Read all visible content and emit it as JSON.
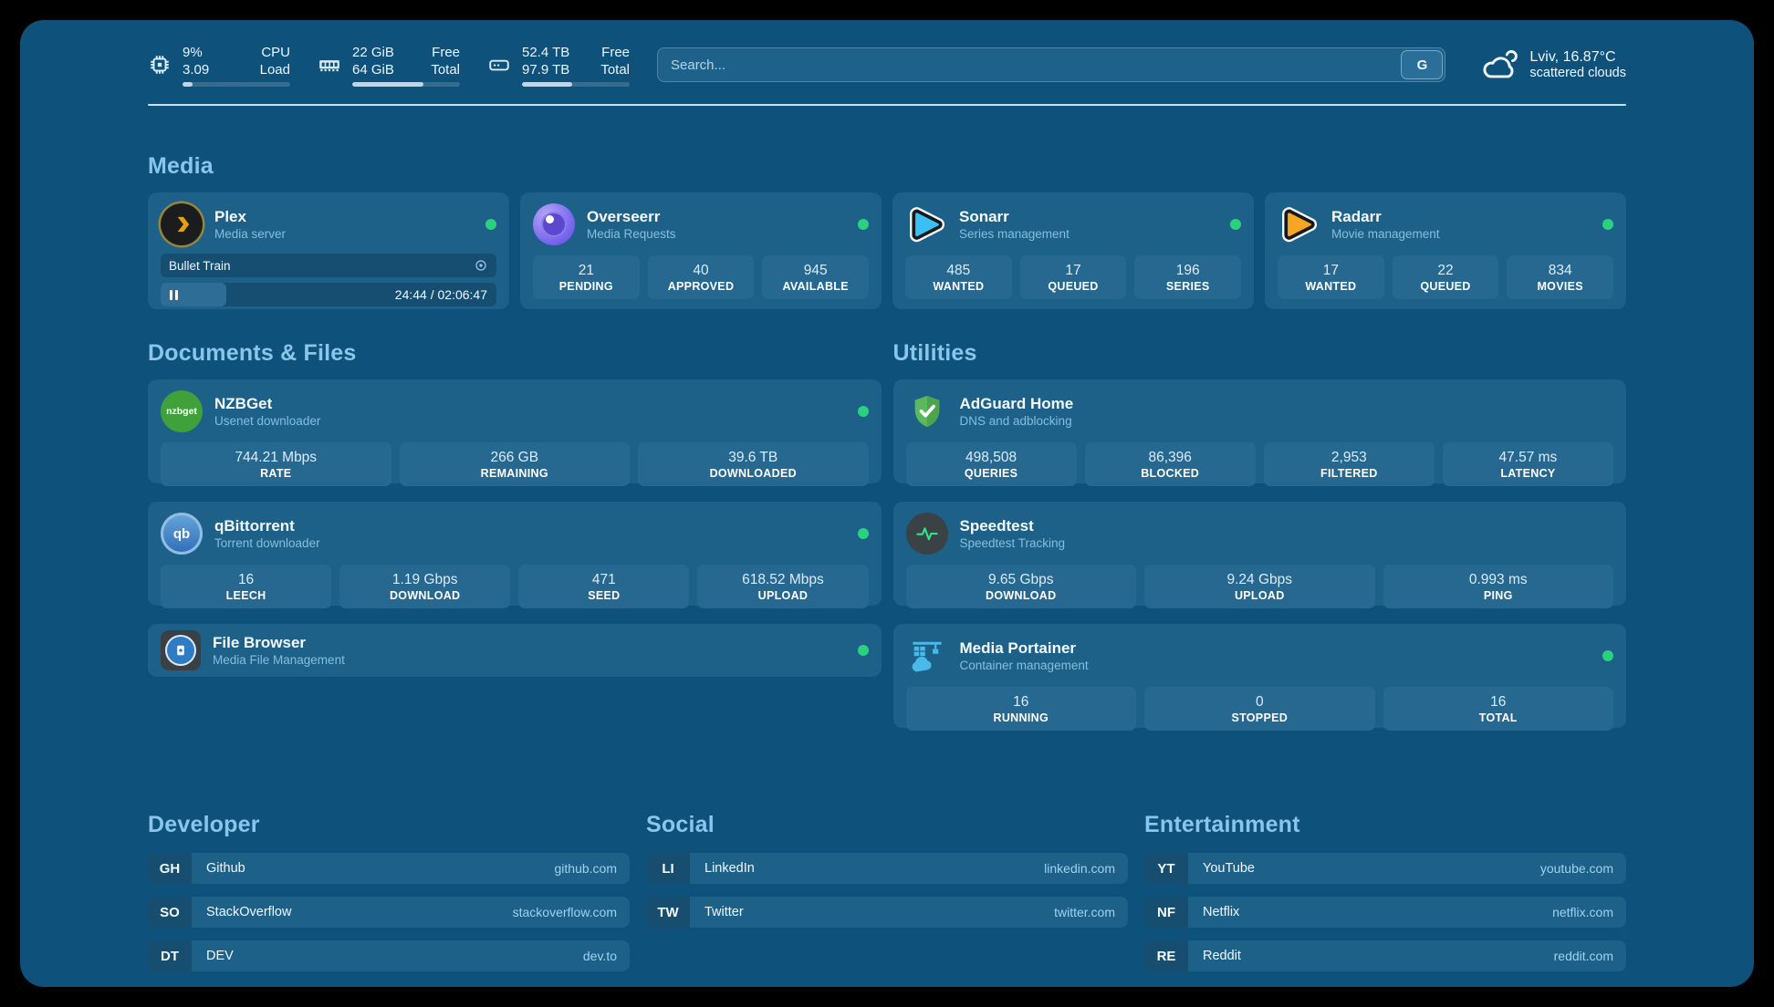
{
  "header": {
    "stats": [
      {
        "icon": "cpu-icon",
        "values": [
          "9%",
          "3.09"
        ],
        "labels": [
          "CPU",
          "Load"
        ],
        "progress": 9
      },
      {
        "icon": "ram-icon",
        "values": [
          "22 GiB",
          "64 GiB"
        ],
        "labels": [
          "Free",
          "Total"
        ],
        "progress": 66
      },
      {
        "icon": "disk-icon",
        "values": [
          "52.4 TB",
          "97.9 TB"
        ],
        "labels": [
          "Free",
          "Total"
        ],
        "progress": 47
      }
    ],
    "search": {
      "placeholder": "Search...",
      "button_label": "G"
    },
    "weather": {
      "location": "Lviv, 16.87°C",
      "condition": "scattered clouds"
    }
  },
  "media": {
    "title": "Media",
    "plex": {
      "name": "Plex",
      "subtitle": "Media server",
      "now_playing": "Bullet Train",
      "time": "24:44 / 02:06:47",
      "progress": 19.5
    },
    "cards": [
      {
        "name": "Overseerr",
        "subtitle": "Media Requests",
        "stats": [
          {
            "value": "21",
            "label": "PENDING"
          },
          {
            "value": "40",
            "label": "APPROVED"
          },
          {
            "value": "945",
            "label": "AVAILABLE"
          }
        ]
      },
      {
        "name": "Sonarr",
        "subtitle": "Series management",
        "stats": [
          {
            "value": "485",
            "label": "WANTED"
          },
          {
            "value": "17",
            "label": "QUEUED"
          },
          {
            "value": "196",
            "label": "SERIES"
          }
        ]
      },
      {
        "name": "Radarr",
        "subtitle": "Movie management",
        "stats": [
          {
            "value": "17",
            "label": "WANTED"
          },
          {
            "value": "22",
            "label": "QUEUED"
          },
          {
            "value": "834",
            "label": "MOVIES"
          }
        ]
      }
    ]
  },
  "documents": {
    "title": "Documents & Files",
    "cards": [
      {
        "name": "NZBGet",
        "subtitle": "Usenet downloader",
        "icon_text": "nzbget",
        "stats": [
          {
            "value": "744.21 Mbps",
            "label": "RATE"
          },
          {
            "value": "266 GB",
            "label": "REMAINING"
          },
          {
            "value": "39.6 TB",
            "label": "DOWNLOADED"
          }
        ]
      },
      {
        "name": "qBittorrent",
        "subtitle": "Torrent downloader",
        "icon_text": "qb",
        "stats": [
          {
            "value": "16",
            "label": "LEECH"
          },
          {
            "value": "1.19 Gbps",
            "label": "DOWNLOAD"
          },
          {
            "value": "471",
            "label": "SEED"
          },
          {
            "value": "618.52 Mbps",
            "label": "UPLOAD"
          }
        ]
      },
      {
        "name": "File Browser",
        "subtitle": "Media File Management",
        "stats": []
      }
    ]
  },
  "utilities": {
    "title": "Utilities",
    "cards": [
      {
        "name": "AdGuard Home",
        "subtitle": "DNS and adblocking",
        "stats": [
          {
            "value": "498,508",
            "label": "QUERIES"
          },
          {
            "value": "86,396",
            "label": "BLOCKED"
          },
          {
            "value": "2,953",
            "label": "FILTERED"
          },
          {
            "value": "47.57 ms",
            "label": "LATENCY"
          }
        ]
      },
      {
        "name": "Speedtest",
        "subtitle": "Speedtest Tracking",
        "stats": [
          {
            "value": "9.65 Gbps",
            "label": "DOWNLOAD"
          },
          {
            "value": "9.24 Gbps",
            "label": "UPLOAD"
          },
          {
            "value": "0.993 ms",
            "label": "PING"
          }
        ]
      },
      {
        "name": "Media Portainer",
        "subtitle": "Container management",
        "stats": [
          {
            "value": "16",
            "label": "RUNNING"
          },
          {
            "value": "0",
            "label": "STOPPED"
          },
          {
            "value": "16",
            "label": "TOTAL"
          }
        ]
      }
    ]
  },
  "bookmarks": [
    {
      "title": "Developer",
      "items": [
        {
          "abbr": "GH",
          "name": "Github",
          "url": "github.com"
        },
        {
          "abbr": "SO",
          "name": "StackOverflow",
          "url": "stackoverflow.com"
        },
        {
          "abbr": "DT",
          "name": "DEV",
          "url": "dev.to"
        }
      ]
    },
    {
      "title": "Social",
      "items": [
        {
          "abbr": "LI",
          "name": "LinkedIn",
          "url": "linkedin.com"
        },
        {
          "abbr": "TW",
          "name": "Twitter",
          "url": "twitter.com"
        }
      ]
    },
    {
      "title": "Entertainment",
      "items": [
        {
          "abbr": "YT",
          "name": "YouTube",
          "url": "youtube.com"
        },
        {
          "abbr": "NF",
          "name": "Netflix",
          "url": "netflix.com"
        },
        {
          "abbr": "RE",
          "name": "Reddit",
          "url": "reddit.com"
        }
      ]
    }
  ],
  "colors": {
    "status_online": "#2bd17e",
    "accent": "#8ac6ec",
    "panel": "#0e527b"
  }
}
